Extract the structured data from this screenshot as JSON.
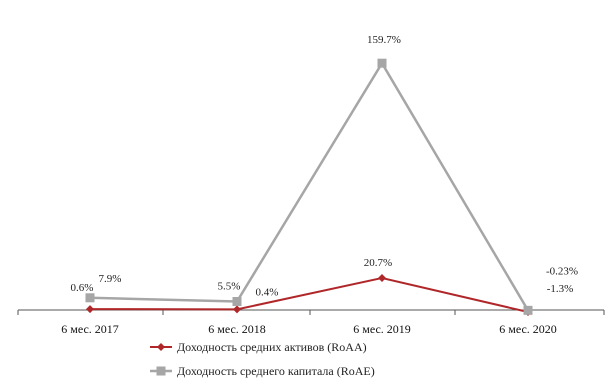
{
  "chart_data": {
    "type": "line",
    "categories": [
      "6 мес. 2017",
      "6 мес. 2018",
      "6 мес. 2019",
      "6 мес. 2020"
    ],
    "series": [
      {
        "name": "Доходность средних активов (RoAA)",
        "values": [
          0.6,
          0.4,
          20.7,
          -1.3
        ],
        "labels": [
          "0.6%",
          "0.4%",
          "20.7%",
          "-1.3%"
        ],
        "color": "#b0272a",
        "marker": "diamond"
      },
      {
        "name": "Доходность среднего капитала (RoAE)",
        "values": [
          7.9,
          5.5,
          159.7,
          -0.23
        ],
        "labels": [
          "7.9%",
          "5.5%",
          "159.7%",
          "-0.23%"
        ],
        "color": "#a6a6a6",
        "marker": "square"
      }
    ],
    "ylim": [
      -2,
      165
    ],
    "grid": false,
    "legend_position": "bottom"
  }
}
